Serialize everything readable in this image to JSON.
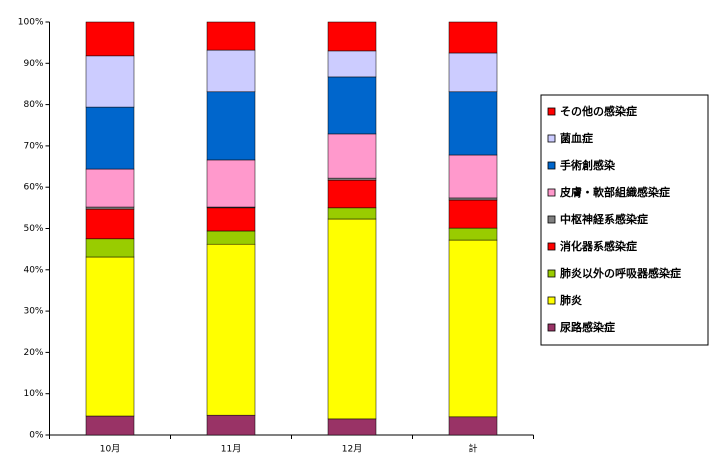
{
  "chart_data": {
    "type": "bar",
    "stacked": true,
    "categories": [
      "10月",
      "11月",
      "12月",
      "計"
    ],
    "ylim": [
      0,
      100
    ],
    "yticks": [
      {
        "value": 0,
        "label": "0%"
      },
      {
        "value": 10,
        "label": "10%"
      },
      {
        "value": 20,
        "label": "20%"
      },
      {
        "value": 30,
        "label": "30%"
      },
      {
        "value": 40,
        "label": "40%"
      },
      {
        "value": 50,
        "label": "50%"
      },
      {
        "value": 60,
        "label": "60%"
      },
      {
        "value": 70,
        "label": "70%"
      },
      {
        "value": 80,
        "label": "80%"
      },
      {
        "value": 90,
        "label": "90%"
      },
      {
        "value": 100,
        "label": "100%"
      }
    ],
    "grid": false,
    "legend": "right",
    "series": [
      {
        "name": "尿路感染症",
        "color": "#993366",
        "values": [
          4.6,
          4.8,
          3.9,
          4.4
        ]
      },
      {
        "name": "肺炎",
        "color": "#ffff00",
        "values": [
          38.5,
          41.4,
          48.4,
          42.8
        ]
      },
      {
        "name": "肺炎以外の呼吸器感染症",
        "color": "#99cc00",
        "values": [
          4.4,
          3.2,
          2.7,
          2.9
        ]
      },
      {
        "name": "消化器系感染症",
        "color": "#ff0000",
        "values": [
          7.2,
          5.6,
          6.7,
          6.8
        ]
      },
      {
        "name": "中枢神経系感染症",
        "color": "#808080",
        "values": [
          0.5,
          0.2,
          0.5,
          0.5
        ]
      },
      {
        "name": "皮膚・軟部組織感染症",
        "color": "#ff99cc",
        "values": [
          9.2,
          11.4,
          10.7,
          10.4
        ]
      },
      {
        "name": "手術創感染",
        "color": "#0066cc",
        "values": [
          15.0,
          16.5,
          13.8,
          15.3
        ]
      },
      {
        "name": "菌血症",
        "color": "#ccccff",
        "values": [
          12.4,
          10.1,
          6.3,
          9.4
        ]
      },
      {
        "name": "その他の感染症",
        "color": "#ff0000",
        "values": [
          8.2,
          6.8,
          7.0,
          7.5
        ]
      }
    ]
  }
}
